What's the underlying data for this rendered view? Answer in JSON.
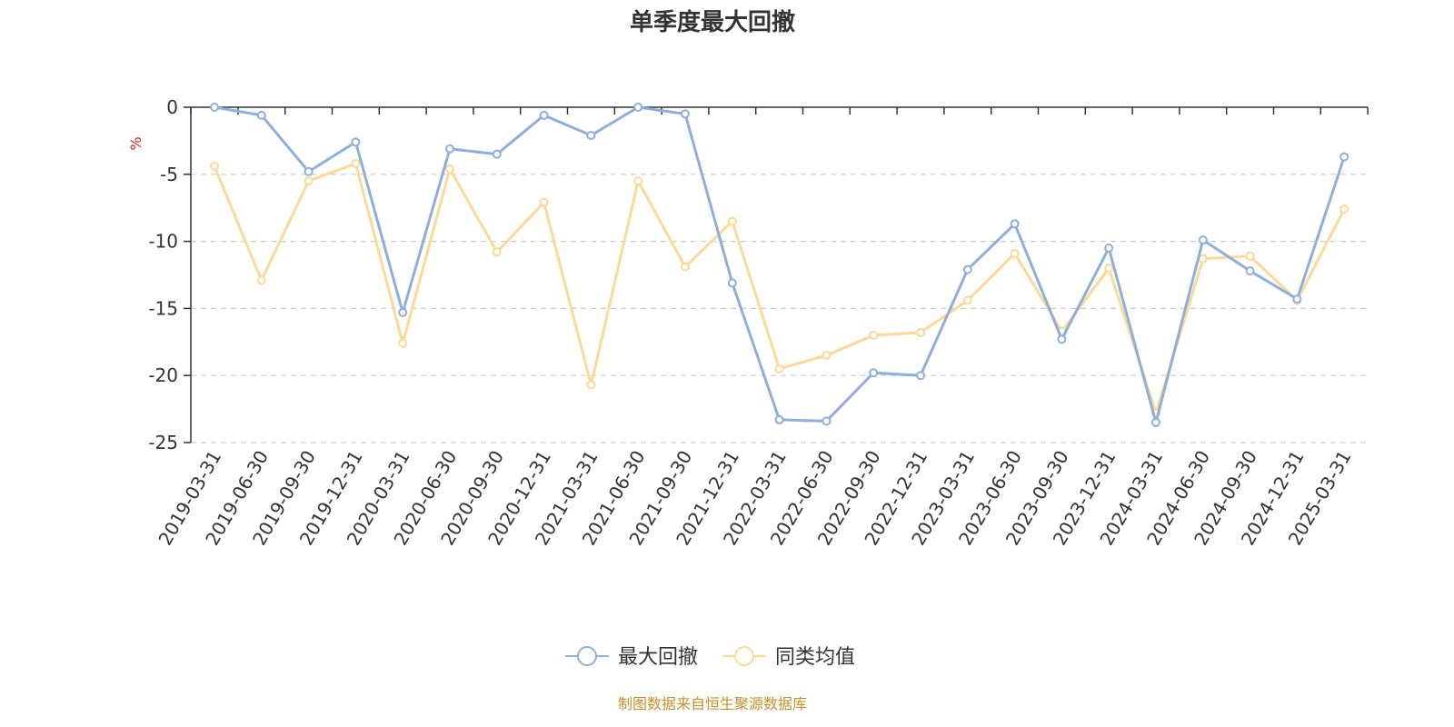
{
  "chart_data": {
    "type": "line",
    "title": "单季度最大回撤",
    "ylabel": "%",
    "ylim": [
      -25,
      0
    ],
    "yticks": [
      0,
      -5,
      -10,
      -15,
      -20,
      -25
    ],
    "grid": true,
    "legend_position": "bottom-center",
    "categories": [
      "2019-03-31",
      "2019-06-30",
      "2019-09-30",
      "2019-12-31",
      "2020-03-31",
      "2020-06-30",
      "2020-09-30",
      "2020-12-31",
      "2021-03-31",
      "2021-06-30",
      "2021-09-30",
      "2021-12-31",
      "2022-03-31",
      "2022-06-30",
      "2022-09-30",
      "2022-12-31",
      "2023-03-31",
      "2023-06-30",
      "2023-09-30",
      "2023-12-31",
      "2024-03-31",
      "2024-06-30",
      "2024-09-30",
      "2024-12-31",
      "2025-03-31"
    ],
    "series": [
      {
        "name": "最大回撤",
        "color": "#8eaedb",
        "values": [
          0,
          -0.6,
          -4.8,
          -2.6,
          -15.3,
          -3.1,
          -3.5,
          -0.6,
          -2.1,
          0,
          -0.5,
          -13.1,
          -23.3,
          -23.4,
          -19.8,
          -20.0,
          -12.1,
          -8.7,
          -17.3,
          -10.5,
          -23.5,
          -9.9,
          -12.2,
          -14.3,
          -3.7
        ]
      },
      {
        "name": "同类均值",
        "color": "#fcd997",
        "values": [
          -4.4,
          -12.9,
          -5.5,
          -4.2,
          -17.6,
          -4.6,
          -10.8,
          -7.1,
          -20.7,
          -5.5,
          -11.9,
          -8.5,
          -19.5,
          -18.5,
          -17.0,
          -16.8,
          -14.4,
          -10.9,
          -16.7,
          -12.0,
          -22.8,
          -11.3,
          -11.1,
          -14.4,
          -7.6
        ]
      }
    ],
    "source": "制图数据来自恒生聚源数据库"
  }
}
